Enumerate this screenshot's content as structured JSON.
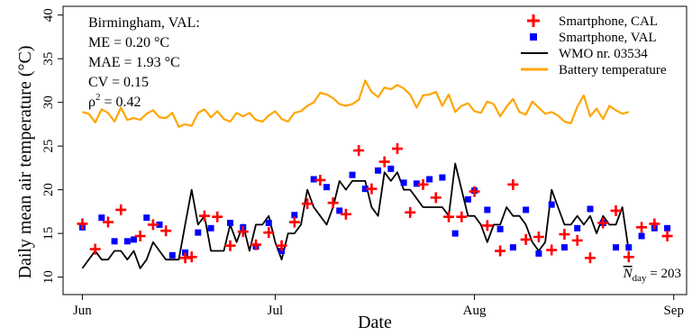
{
  "chart_data": {
    "type": "line",
    "xlabel": "Date",
    "ylabel": "Daily mean air temperature (°C)",
    "ylim": [
      8,
      41
    ],
    "yticks": [
      10,
      15,
      20,
      25,
      30,
      35,
      40
    ],
    "xticks": [
      {
        "label": "Jun",
        "date": "2014-06-01"
      },
      {
        "label": "Jul",
        "date": "2014-07-01"
      },
      {
        "label": "Aug",
        "date": "2014-08-01"
      },
      {
        "label": "Sep",
        "date": "2014-09-01"
      }
    ],
    "xlim": [
      "2014-05-29",
      "2014-09-03"
    ],
    "stats": {
      "title": "Birmingham, VAL:",
      "me": "ME = 0.20 °C",
      "mae": "MAE = 1.93 °C",
      "cv": "CV = 0.15",
      "rho_prefix": "ρ",
      "rho_exp": "2",
      "rho_value": " = 0.42"
    },
    "nday": {
      "prefix": "N",
      "sub": "day",
      "value": " = 203"
    },
    "legend_position": "top-right",
    "colors": {
      "cal": "#ff0000",
      "val": "#0000ff",
      "wmo": "#000000",
      "battery": "#ffa500"
    },
    "series": [
      {
        "name": "Smartphone, CAL",
        "kind": "plus",
        "points": [
          [
            "2014-06-01",
            16.1
          ],
          [
            "2014-06-03",
            13.2
          ],
          [
            "2014-06-05",
            16.3
          ],
          [
            "2014-06-07",
            17.7
          ],
          [
            "2014-06-10",
            14.7
          ],
          [
            "2014-06-12",
            16.0
          ],
          [
            "2014-06-14",
            15.3
          ],
          [
            "2014-06-17",
            12.2
          ],
          [
            "2014-06-18",
            12.3
          ],
          [
            "2014-06-20",
            17.0
          ],
          [
            "2014-06-22",
            16.9
          ],
          [
            "2014-06-24",
            13.6
          ],
          [
            "2014-06-26",
            15.2
          ],
          [
            "2014-06-28",
            13.7
          ],
          [
            "2014-06-30",
            15.1
          ],
          [
            "2014-07-02",
            13.6
          ],
          [
            "2014-07-04",
            16.3
          ],
          [
            "2014-07-06",
            18.4
          ],
          [
            "2014-07-08",
            21.1
          ],
          [
            "2014-07-10",
            18.5
          ],
          [
            "2014-07-12",
            17.2
          ],
          [
            "2014-07-14",
            24.5
          ],
          [
            "2014-07-16",
            20.1
          ],
          [
            "2014-07-18",
            23.2
          ],
          [
            "2014-07-20",
            24.7
          ],
          [
            "2014-07-22",
            17.4
          ],
          [
            "2014-07-24",
            20.6
          ],
          [
            "2014-07-26",
            19.1
          ],
          [
            "2014-07-28",
            16.9
          ],
          [
            "2014-07-30",
            16.9
          ],
          [
            "2014-08-01",
            19.8
          ],
          [
            "2014-08-03",
            15.9
          ],
          [
            "2014-08-05",
            13.0
          ],
          [
            "2014-08-07",
            20.6
          ],
          [
            "2014-08-09",
            14.3
          ],
          [
            "2014-08-11",
            14.6
          ],
          [
            "2014-08-13",
            13.1
          ],
          [
            "2014-08-15",
            14.9
          ],
          [
            "2014-08-17",
            14.2
          ],
          [
            "2014-08-19",
            12.2
          ],
          [
            "2014-08-21",
            16.2
          ],
          [
            "2014-08-23",
            17.6
          ],
          [
            "2014-08-25",
            12.3
          ],
          [
            "2014-08-27",
            15.7
          ],
          [
            "2014-08-29",
            16.1
          ],
          [
            "2014-08-31",
            14.7
          ]
        ]
      },
      {
        "name": "Smartphone, VAL",
        "kind": "square",
        "points": [
          [
            "2014-06-01",
            15.7
          ],
          [
            "2014-06-04",
            16.8
          ],
          [
            "2014-06-06",
            14.1
          ],
          [
            "2014-06-08",
            14.1
          ],
          [
            "2014-06-09",
            14.3
          ],
          [
            "2014-06-11",
            16.8
          ],
          [
            "2014-06-13",
            16.0
          ],
          [
            "2014-06-15",
            12.5
          ],
          [
            "2014-06-17",
            12.8
          ],
          [
            "2014-06-19",
            15.1
          ],
          [
            "2014-06-21",
            15.6
          ],
          [
            "2014-06-24",
            16.2
          ],
          [
            "2014-06-26",
            15.7
          ],
          [
            "2014-06-28",
            13.5
          ],
          [
            "2014-06-30",
            16.2
          ],
          [
            "2014-07-02",
            13.0
          ],
          [
            "2014-07-04",
            17.1
          ],
          [
            "2014-07-07",
            21.2
          ],
          [
            "2014-07-09",
            20.3
          ],
          [
            "2014-07-11",
            17.6
          ],
          [
            "2014-07-13",
            21.7
          ],
          [
            "2014-07-15",
            20.1
          ],
          [
            "2014-07-17",
            22.2
          ],
          [
            "2014-07-19",
            22.4
          ],
          [
            "2014-07-21",
            20.8
          ],
          [
            "2014-07-23",
            20.7
          ],
          [
            "2014-07-25",
            21.2
          ],
          [
            "2014-07-27",
            21.4
          ],
          [
            "2014-07-29",
            15.0
          ],
          [
            "2014-07-31",
            18.9
          ],
          [
            "2014-08-01",
            19.9
          ],
          [
            "2014-08-03",
            17.7
          ],
          [
            "2014-08-05",
            15.5
          ],
          [
            "2014-08-07",
            13.4
          ],
          [
            "2014-08-09",
            17.7
          ],
          [
            "2014-08-11",
            12.7
          ],
          [
            "2014-08-13",
            18.3
          ],
          [
            "2014-08-15",
            13.4
          ],
          [
            "2014-08-17",
            15.6
          ],
          [
            "2014-08-19",
            17.8
          ],
          [
            "2014-08-21",
            16.2
          ],
          [
            "2014-08-23",
            13.4
          ],
          [
            "2014-08-25",
            13.4
          ],
          [
            "2014-08-27",
            14.7
          ],
          [
            "2014-08-29",
            15.6
          ],
          [
            "2014-08-31",
            15.6
          ]
        ]
      },
      {
        "name": "WMO nr. 03534",
        "kind": "line",
        "x_start": "2014-06-01",
        "values": [
          11,
          12,
          13,
          12,
          12,
          13,
          13,
          12,
          13,
          11,
          12,
          14,
          13,
          12,
          12,
          12,
          16,
          20,
          16,
          17,
          13,
          13,
          13,
          16,
          14,
          16,
          13,
          16,
          16,
          17,
          14,
          12,
          15,
          15,
          16,
          20,
          18,
          17,
          16,
          18,
          21,
          20,
          21,
          21,
          21,
          18,
          17,
          22,
          21,
          22,
          20,
          20,
          19,
          18,
          18,
          18,
          18,
          17,
          23,
          20,
          17,
          17,
          16,
          14,
          16,
          16,
          18,
          17,
          17,
          16,
          14,
          13,
          14,
          20,
          18,
          16,
          16,
          17,
          16,
          17,
          15,
          17,
          16,
          16,
          18,
          13
        ]
      },
      {
        "name": "Battery temperature",
        "kind": "line",
        "x_start": "2014-06-01",
        "values": [
          28.9,
          28.7,
          27.7,
          29.2,
          28.8,
          27.8,
          29.4,
          28.0,
          28.2,
          28.0,
          28.7,
          29.1,
          28.3,
          28.2,
          28.8,
          27.2,
          27.5,
          27.3,
          28.8,
          29.2,
          28.3,
          29.0,
          28.1,
          27.8,
          28.8,
          28.4,
          28.8,
          28.0,
          27.8,
          28.5,
          29.0,
          28.1,
          27.8,
          28.8,
          29.0,
          29.6,
          30.0,
          31.1,
          30.9,
          30.5,
          29.8,
          29.6,
          29.8,
          30.3,
          32.5,
          31.2,
          30.6,
          31.7,
          31.5,
          32.0,
          31.6,
          30.9,
          29.4,
          30.8,
          30.9,
          31.2,
          29.6,
          30.9,
          28.9,
          29.6,
          29.9,
          29.0,
          28.8,
          30.1,
          29.8,
          28.4,
          29.5,
          30.4,
          28.9,
          28.6,
          30.1,
          29.4,
          28.7,
          28.9,
          28.5,
          27.8,
          27.6,
          29.5,
          30.8,
          28.4,
          29.3,
          28.1,
          29.6,
          29.1,
          28.7,
          28.9
        ]
      }
    ]
  }
}
